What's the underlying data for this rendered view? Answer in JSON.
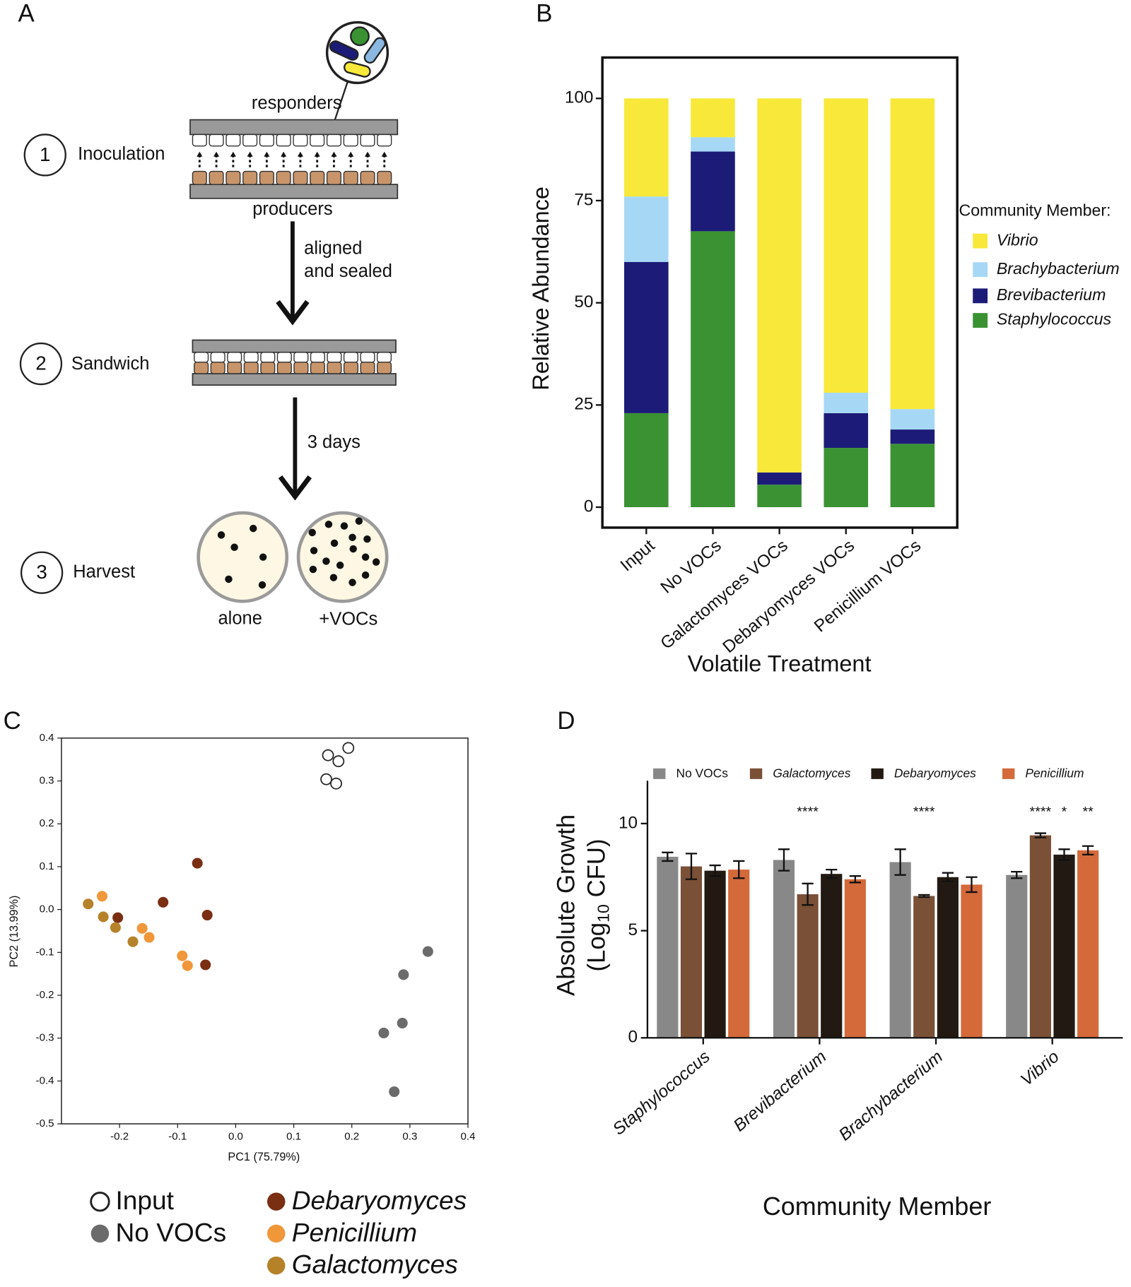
{
  "panel_labels": [
    "A",
    "B",
    "C",
    "D"
  ],
  "panel_a": {
    "responders": "responders",
    "producers": "producers",
    "steps": [
      {
        "number": "1",
        "name": "Inoculation"
      },
      {
        "number": "2",
        "name": "Sandwich"
      },
      {
        "number": "3",
        "name": "Harvest"
      }
    ],
    "arrow1": [
      "aligned",
      "and sealed"
    ],
    "arrow2": "3 days",
    "dishes": [
      "alone",
      "+VOCs"
    ]
  },
  "chart_data": [
    {
      "type": "bar",
      "stacked": true,
      "categories": [
        "Input",
        "No VOCs",
        "Galactomyces VOCs",
        "Debaryomyces VOCs",
        "Penicillium VOCs"
      ],
      "series": [
        {
          "name": "Vibrio",
          "color": "#f8e83a",
          "values": [
            24,
            9.5,
            91.5,
            72,
            76
          ]
        },
        {
          "name": "Brachybacterium",
          "color": "#a6d8f5",
          "values": [
            16,
            3.5,
            0,
            5,
            5
          ]
        },
        {
          "name": "Brevibacterium",
          "color": "#1c1c78",
          "values": [
            37,
            19.5,
            3,
            8.5,
            3.5
          ]
        },
        {
          "name": "Staphylococcus",
          "color": "#3a9232",
          "values": [
            23,
            67.5,
            5.5,
            14.5,
            15.5
          ]
        }
      ],
      "ylim": [
        -5,
        110
      ],
      "yticks": [
        0,
        25,
        50,
        75,
        100
      ],
      "y_label": "Relative Abundance",
      "x_label": "Volatile Treatment",
      "legend_title": "Community Member:",
      "legend_italic": true,
      "grid": false
    },
    {
      "type": "scatter",
      "x_label": "PC1 (75.79%)",
      "y_label": "PC2 (13.99%)",
      "xlim": [
        -0.3,
        0.4
      ],
      "ylim": [
        -0.5,
        0.4
      ],
      "xticks": [
        -0.2,
        -0.1,
        {
          "value": 0,
          "label": "0.0"
        },
        0.1,
        0.2,
        0.3,
        0.4
      ],
      "yticks": [
        -0.5,
        -0.4,
        -0.3,
        -0.2,
        -0.1,
        {
          "value": 0,
          "label": "0.0"
        },
        0.1,
        0.2,
        0.3,
        0.4
      ],
      "series": [
        {
          "name": "Input",
          "color": "#ffffff",
          "edge": "#222222",
          "italic": false,
          "x": [
            0.159,
            0.177,
            0.194,
            0.156,
            0.173
          ],
          "values": [
            0.36,
            0.346,
            0.377,
            0.304,
            0.294
          ]
        },
        {
          "name": "No VOCs",
          "color": "#6b6b6b",
          "italic": false,
          "x": [
            0.331,
            0.289,
            0.287,
            0.255,
            0.273
          ],
          "values": [
            -0.098,
            -0.152,
            -0.265,
            -0.288,
            -0.425
          ]
        },
        {
          "name": "Debaryomyces",
          "color": "#7a2e12",
          "italic": true,
          "x": [
            -0.066,
            -0.125,
            -0.049,
            -0.052,
            -0.203
          ],
          "values": [
            0.108,
            0.017,
            -0.013,
            -0.129,
            -0.019
          ]
        },
        {
          "name": "Penicillium",
          "color": "#f0973a",
          "italic": true,
          "x": [
            -0.23,
            -0.161,
            -0.149,
            -0.092,
            -0.083
          ],
          "values": [
            0.031,
            -0.044,
            -0.065,
            -0.108,
            -0.131
          ]
        },
        {
          "name": "Galactomyces",
          "color": "#b5822a",
          "italic": true,
          "x": [
            -0.254,
            -0.228,
            -0.207,
            -0.177
          ],
          "values": [
            0.013,
            -0.017,
            -0.042,
            -0.075
          ]
        }
      ]
    },
    {
      "type": "bar",
      "stacked": false,
      "categories": [
        "Staphylococcus",
        "Brevibacterium",
        "Brachybacterium",
        "Vibrio"
      ],
      "series": [
        {
          "name": "No VOCs",
          "color": "#888888",
          "italic": false,
          "values": [
            8.45,
            8.3,
            8.2,
            7.6
          ],
          "errors": [
            0.2,
            0.5,
            0.6,
            0.15
          ],
          "significance": [
            null,
            null,
            null,
            null
          ]
        },
        {
          "name": "Galactomyces",
          "color": "#7a5036",
          "italic": true,
          "values": [
            8.0,
            6.7,
            6.62,
            9.45
          ],
          "errors": [
            0.6,
            0.5,
            0.05,
            0.1
          ],
          "significance": [
            null,
            "****",
            "****",
            "****"
          ]
        },
        {
          "name": "Debaryomyces",
          "color": "#221a12",
          "italic": true,
          "values": [
            7.8,
            7.65,
            7.5,
            8.55
          ],
          "errors": [
            0.25,
            0.2,
            0.2,
            0.25
          ],
          "significance": [
            null,
            null,
            null,
            "*"
          ]
        },
        {
          "name": "Penicillium",
          "color": "#d4693a",
          "italic": true,
          "values": [
            7.85,
            7.4,
            7.15,
            8.75
          ],
          "errors": [
            0.4,
            0.15,
            0.35,
            0.2
          ],
          "significance": [
            null,
            null,
            null,
            "**"
          ]
        }
      ],
      "ylim": [
        0,
        12
      ],
      "yticks": [
        0,
        5,
        10
      ],
      "y_label": {
        "line1": "Absolute Growth",
        "prefix": "(Log",
        "subscript": "10",
        "suffix": " CFU)"
      },
      "x_label": "Community Member",
      "grid": false
    }
  ]
}
